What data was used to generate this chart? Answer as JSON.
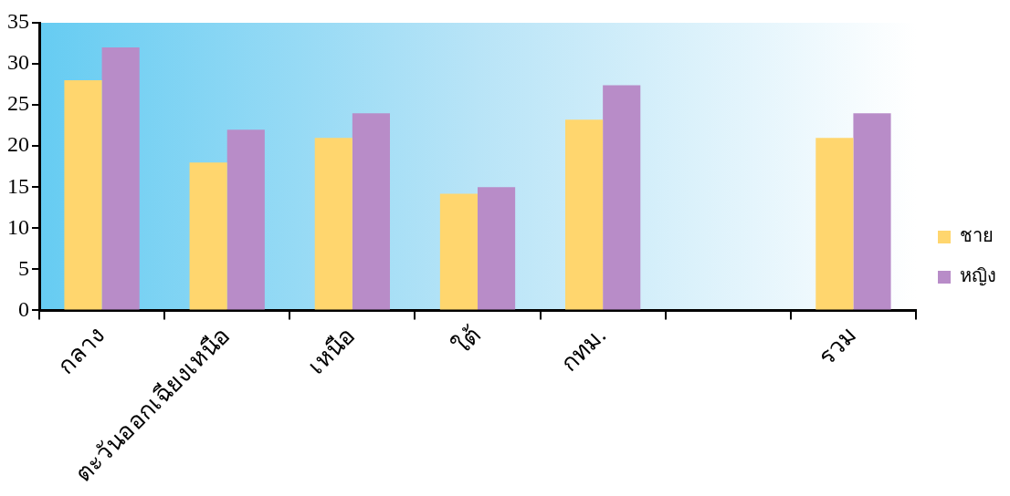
{
  "chart_data": {
    "type": "bar",
    "categories": [
      "กลาง",
      "ตะวันออกเฉียงเหนือ",
      "เหนือ",
      "ใต้",
      "กทม.",
      null,
      "รวม"
    ],
    "series": [
      {
        "name": "ชาย",
        "color": "#ffd66e",
        "values": [
          28,
          18,
          21,
          14.2,
          23.2,
          null,
          21
        ]
      },
      {
        "name": "หญิง",
        "color": "#b88cc8",
        "values": [
          32,
          22,
          24,
          15,
          27.4,
          null,
          24
        ]
      }
    ],
    "ylim": [
      0,
      35
    ],
    "yticks": [
      0,
      5,
      10,
      15,
      20,
      25,
      30,
      35
    ],
    "grid": false,
    "legend": "right"
  }
}
